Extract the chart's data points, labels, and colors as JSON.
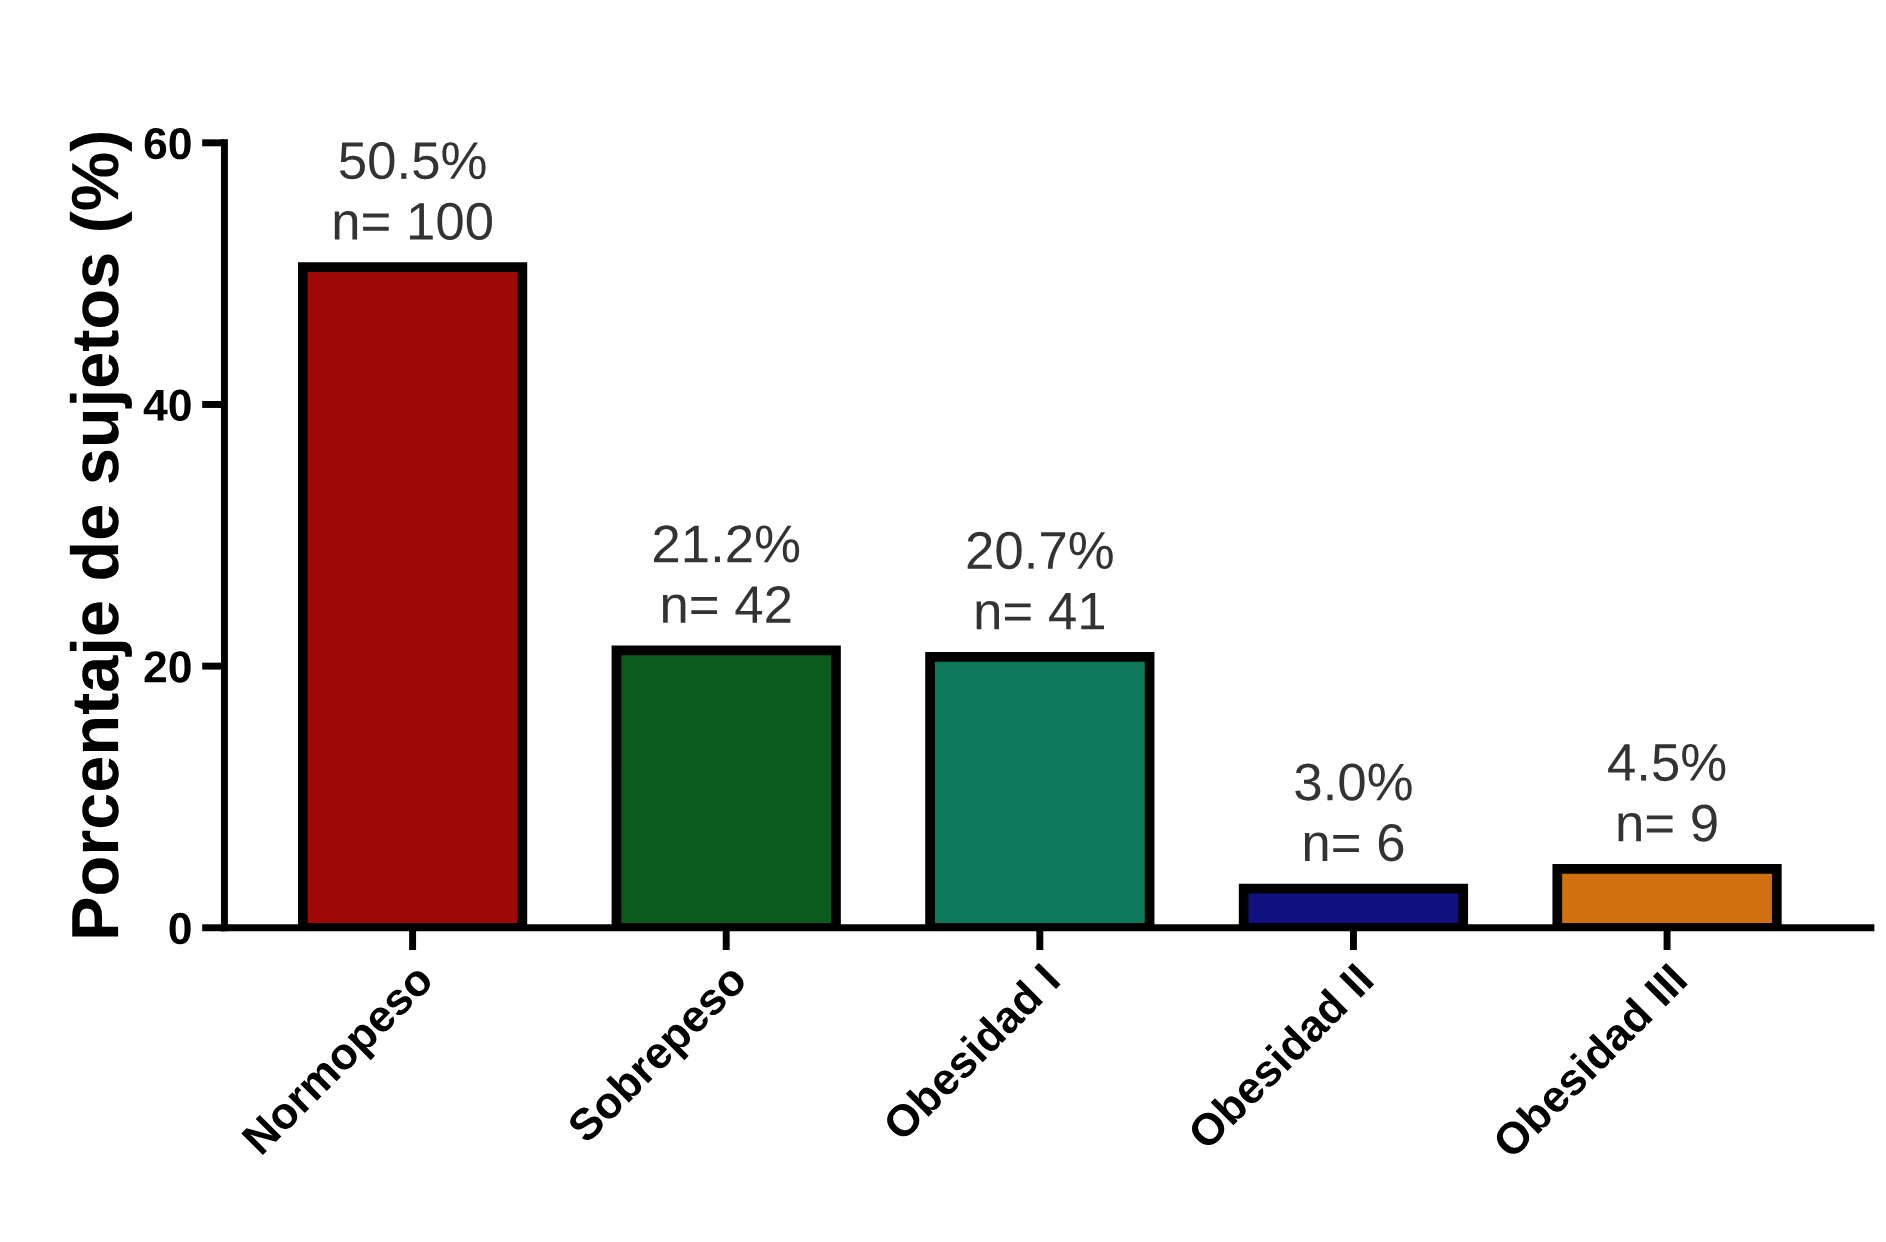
{
  "chart_data": {
    "type": "bar",
    "ylabel": "Porcentaje de sujetos (%)",
    "categories": [
      "Normopeso",
      "Sobrepeso",
      "Obesidad I",
      "Obesidad II",
      "Obesidad III"
    ],
    "values": [
      50.5,
      21.2,
      20.7,
      3.0,
      4.5
    ],
    "colors": [
      "#a00808",
      "#0a5a1e",
      "#10785a",
      "#101080",
      "#d07010"
    ],
    "value_labels": [
      "50.5%\nn= 100",
      "21.2%\nn= 42",
      "20.7%\nn= 41",
      "3.0%\nn= 6",
      "4.5%\nn= 9"
    ],
    "ylim": [
      0,
      60
    ],
    "yticks": [
      0,
      20,
      40,
      60
    ],
    "grid": false,
    "legend": false
  }
}
